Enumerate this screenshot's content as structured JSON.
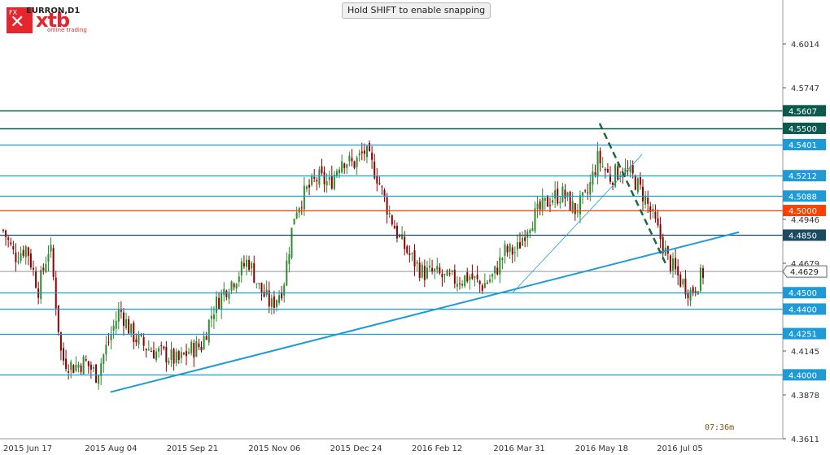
{
  "toolbar": {
    "snap_hint": "Hold SHIFT to enable snapping"
  },
  "header": {
    "fx_label": "FX",
    "brand": "xtb",
    "tagline": "online trading",
    "symbol": "EURRON,D1"
  },
  "timer": "07:36m",
  "colors": {
    "candle_up": "#2e8b2e",
    "candle_down": "#8b0000",
    "level_blue": "#1e9bd7",
    "level_dark": "#0c5a4e",
    "level_red": "#ff4000",
    "level_navy": "#1b4a63",
    "trend_dashed": "#1a6b3c"
  },
  "chart_data": {
    "type": "candlestick",
    "symbol": "EURRON",
    "timeframe": "D1",
    "ylim": [
      4.3611,
      4.6281
    ],
    "y_ticks": [
      4.6014,
      4.5747,
      4.4946,
      4.4679,
      4.4145,
      4.3878,
      4.3611
    ],
    "x_ticks": [
      "2015 Jun 17",
      "2015 Aug 04",
      "2015 Sep 21",
      "2015 Nov 06",
      "2015 Dec 24",
      "2016 Feb 12",
      "2016 Mar 31",
      "2016 May 18",
      "2016 Jul 05"
    ],
    "close_path": [
      4.488,
      4.472,
      4.478,
      4.452,
      4.48,
      4.41,
      4.405,
      4.408,
      4.4,
      4.42,
      4.44,
      4.425,
      4.418,
      4.414,
      4.412,
      4.408,
      4.415,
      4.418,
      4.44,
      4.452,
      4.46,
      4.47,
      4.452,
      4.442,
      4.454,
      4.5,
      4.512,
      4.52,
      4.516,
      4.532,
      4.528,
      4.536,
      4.522,
      4.5,
      4.482,
      4.471,
      4.462,
      4.462,
      4.458,
      4.458,
      4.46,
      4.454,
      4.46,
      4.475,
      4.475,
      4.492,
      4.5,
      4.508,
      4.51,
      4.5,
      4.508,
      4.532,
      4.52,
      4.525,
      4.52,
      4.508,
      4.49,
      4.47,
      4.458,
      4.45,
      4.462
    ],
    "current_price": 4.4629,
    "levels": [
      {
        "price": 4.5607,
        "label": "4.5607",
        "kind": "dark"
      },
      {
        "price": 4.55,
        "label": "4.5500",
        "kind": "dark"
      },
      {
        "price": 4.5401,
        "label": "4.5401",
        "kind": "blue"
      },
      {
        "price": 4.5212,
        "label": "4.5212",
        "kind": "blue"
      },
      {
        "price": 4.5088,
        "label": "4.5088",
        "kind": "blue"
      },
      {
        "price": 4.5,
        "label": "4.5000",
        "kind": "red"
      },
      {
        "price": 4.485,
        "label": "4.4850",
        "kind": "navy"
      },
      {
        "price": 4.45,
        "label": "4.4500",
        "kind": "blue"
      },
      {
        "price": 4.44,
        "label": "4.4400",
        "kind": "blue"
      },
      {
        "price": 4.4251,
        "label": "4.4251",
        "kind": "blue"
      },
      {
        "price": 4.4,
        "label": "4.4000",
        "kind": "blue"
      }
    ],
    "trendlines": [
      {
        "from": [
          0.141,
          4.3895
        ],
        "to": [
          0.944,
          4.4868
        ],
        "style": "solid",
        "kind": "blue"
      },
      {
        "from": [
          0.655,
          4.45
        ],
        "to": [
          0.82,
          4.534
        ],
        "style": "thin",
        "kind": "blue"
      },
      {
        "from": [
          0.766,
          4.553
        ],
        "to": [
          0.852,
          4.466
        ],
        "style": "dashed",
        "kind": "dashed"
      }
    ]
  }
}
